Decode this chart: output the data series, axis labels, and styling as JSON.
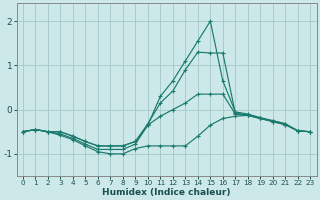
{
  "xlabel": "Humidex (Indice chaleur)",
  "bg_color": "#cce8e8",
  "grid_color": "#a8cccc",
  "line_color": "#1a7a6e",
  "spine_color": "#888888",
  "xlim": [
    -0.5,
    23.5
  ],
  "ylim": [
    -1.5,
    2.4
  ],
  "yticks": [
    -1,
    0,
    1,
    2
  ],
  "xticks": [
    0,
    1,
    2,
    3,
    4,
    5,
    6,
    7,
    8,
    9,
    10,
    11,
    12,
    13,
    14,
    15,
    16,
    17,
    18,
    19,
    20,
    21,
    22,
    23
  ],
  "lines": [
    {
      "x": [
        0,
        1,
        2,
        3,
        4,
        5,
        6,
        7,
        8,
        9,
        10,
        11,
        12,
        13,
        14,
        15,
        16,
        17,
        18,
        19,
        20,
        21,
        22,
        23
      ],
      "y": [
        -0.5,
        -0.45,
        -0.5,
        -0.5,
        -0.6,
        -0.72,
        -0.82,
        -0.82,
        -0.82,
        -0.72,
        -0.35,
        0.3,
        0.65,
        1.1,
        1.55,
        2.0,
        0.65,
        -0.05,
        -0.1,
        -0.18,
        -0.25,
        -0.32,
        -0.48,
        -0.5
      ]
    },
    {
      "x": [
        0,
        1,
        2,
        3,
        4,
        5,
        6,
        7,
        8,
        9,
        10,
        11,
        12,
        13,
        14,
        15,
        16,
        17,
        18,
        19,
        20,
        21,
        22,
        23
      ],
      "y": [
        -0.5,
        -0.45,
        -0.5,
        -0.5,
        -0.6,
        -0.72,
        -0.82,
        -0.82,
        -0.82,
        -0.72,
        -0.32,
        0.15,
        0.42,
        0.9,
        1.3,
        1.28,
        1.28,
        -0.08,
        -0.12,
        -0.2,
        -0.27,
        -0.34,
        -0.48,
        -0.5
      ]
    },
    {
      "x": [
        0,
        1,
        2,
        3,
        4,
        5,
        6,
        7,
        8,
        9,
        10,
        11,
        12,
        13,
        14,
        15,
        16,
        17,
        18,
        19,
        20,
        21,
        22,
        23
      ],
      "y": [
        -0.5,
        -0.45,
        -0.5,
        -0.55,
        -0.65,
        -0.78,
        -0.9,
        -0.9,
        -0.9,
        -0.78,
        -0.35,
        -0.15,
        0.0,
        0.15,
        0.35,
        0.35,
        0.35,
        -0.1,
        -0.13,
        -0.2,
        -0.27,
        -0.34,
        -0.48,
        -0.5
      ]
    },
    {
      "x": [
        0,
        1,
        2,
        3,
        4,
        5,
        6,
        7,
        8,
        9,
        10,
        11,
        12,
        13,
        14,
        15,
        16,
        17,
        18,
        19,
        20,
        21,
        22,
        23
      ],
      "y": [
        -0.5,
        -0.45,
        -0.5,
        -0.58,
        -0.68,
        -0.82,
        -0.95,
        -1.0,
        -1.0,
        -0.88,
        -0.82,
        -0.82,
        -0.82,
        -0.82,
        -0.6,
        -0.35,
        -0.2,
        -0.15,
        -0.13,
        -0.2,
        -0.25,
        -0.32,
        -0.48,
        -0.5
      ]
    }
  ]
}
